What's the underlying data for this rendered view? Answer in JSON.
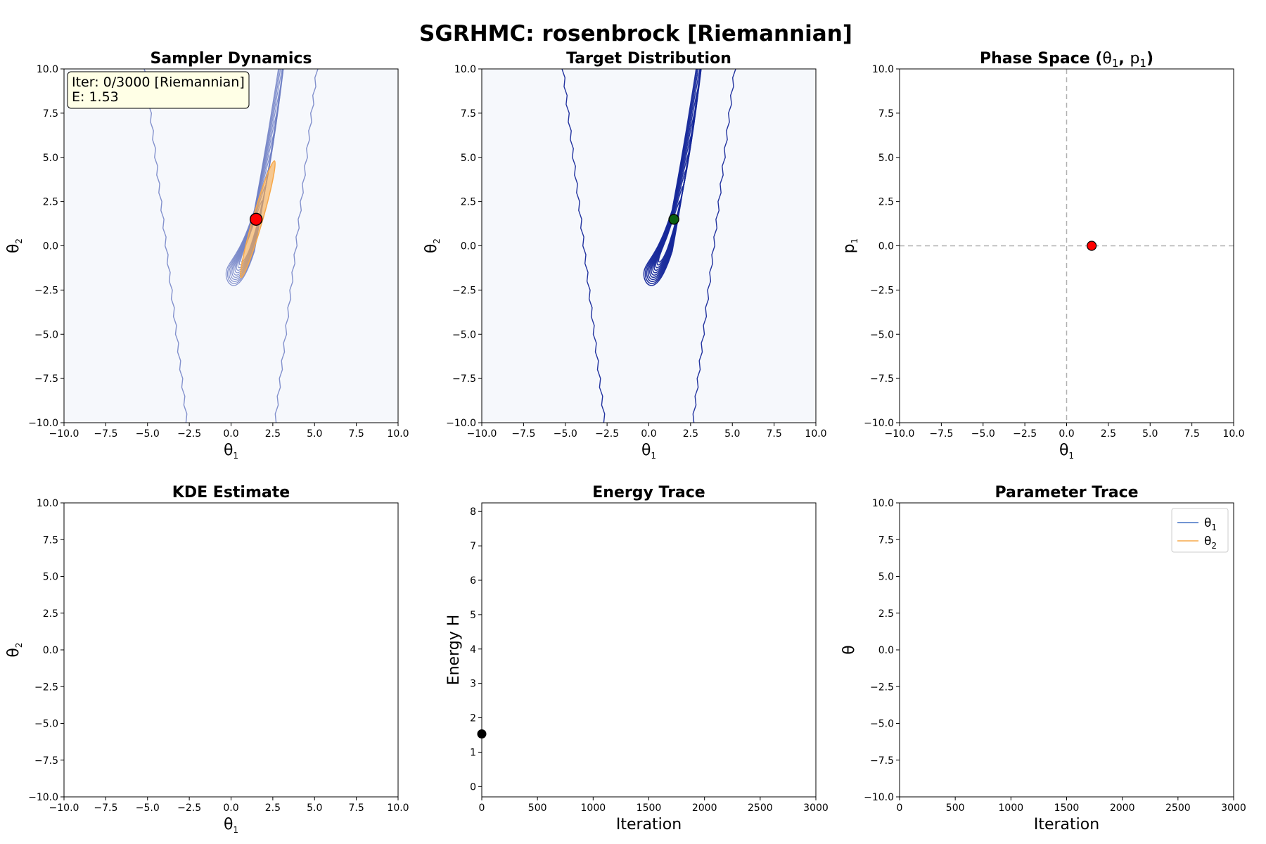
{
  "figure": {
    "title": "SGRHMC: rosenbrock [Riemannian]"
  },
  "colors": {
    "background_field": "#f6f8fc",
    "contour_light": "#6f7fc4",
    "contour_dark": "#16289a",
    "metric_ellipse": "#f7a84a",
    "sample_red": "#ff0000",
    "sample_green": "#0b5f12",
    "theta1_line": "#4472c4",
    "theta2_line": "#f7a84a",
    "guide_dash": "#b0b0b0"
  },
  "chart_data": [
    {
      "id": "sampler",
      "type": "contour",
      "title": "Sampler Dynamics",
      "xlabel": "θ1",
      "ylabel": "θ2",
      "xlim": [
        -10,
        10
      ],
      "ylim": [
        -10,
        10
      ],
      "xticks": [
        "−10.0",
        "−7.5",
        "−5.0",
        "−2.5",
        "0.0",
        "2.5",
        "5.0",
        "7.5",
        "10.0"
      ],
      "yticks": [
        "−10.0",
        "−7.5",
        "−5.0",
        "−2.5",
        "0.0",
        "2.5",
        "5.0",
        "7.5",
        "10.0"
      ],
      "annotation": [
        "Iter: 0/3000 [Riemannian]",
        "E: 1.53"
      ],
      "current_point": {
        "x": 1.5,
        "y": 1.5
      },
      "metric_ellipse": {
        "x1": 0.6,
        "y1": -1.8,
        "x2": 2.6,
        "y2": 4.8
      },
      "contour_style": "light"
    },
    {
      "id": "target",
      "type": "contour",
      "title": "Target Distribution",
      "xlabel": "θ1",
      "ylabel": "θ2",
      "xlim": [
        -10,
        10
      ],
      "ylim": [
        -10,
        10
      ],
      "xticks": [
        "−10.0",
        "−7.5",
        "−5.0",
        "−2.5",
        "0.0",
        "2.5",
        "5.0",
        "7.5",
        "10.0"
      ],
      "yticks": [
        "−10.0",
        "−7.5",
        "−5.0",
        "−2.5",
        "0.0",
        "2.5",
        "5.0",
        "7.5",
        "10.0"
      ],
      "current_point": {
        "x": 1.5,
        "y": 1.5
      },
      "contour_style": "dark"
    },
    {
      "id": "phase",
      "type": "scatter",
      "title": "Phase Space (θ1, p1)",
      "xlabel": "θ1",
      "ylabel": "p1",
      "xlim": [
        -10,
        10
      ],
      "ylim": [
        -10,
        10
      ],
      "xticks": [
        "−10.0",
        "−7.5",
        "−5.0",
        "−2.5",
        "0.0",
        "2.5",
        "5.0",
        "7.5",
        "10.0"
      ],
      "yticks": [
        "−10.0",
        "−7.5",
        "−5.0",
        "−2.5",
        "0.0",
        "2.5",
        "5.0",
        "7.5",
        "10.0"
      ],
      "points": [
        {
          "x": 1.5,
          "y": 0.0
        }
      ],
      "guides": {
        "x": 0,
        "y": 0
      }
    },
    {
      "id": "kde",
      "type": "heatmap",
      "title": "KDE Estimate",
      "xlabel": "θ1",
      "ylabel": "θ2",
      "xlim": [
        -10,
        10
      ],
      "ylim": [
        -10,
        10
      ],
      "xticks": [
        "−10.0",
        "−7.5",
        "−5.0",
        "−2.5",
        "0.0",
        "2.5",
        "5.0",
        "7.5",
        "10.0"
      ],
      "yticks": [
        "−10.0",
        "−7.5",
        "−5.0",
        "−2.5",
        "0.0",
        "2.5",
        "5.0",
        "7.5",
        "10.0"
      ]
    },
    {
      "id": "energy",
      "type": "line",
      "title": "Energy Trace",
      "xlabel": "Iteration",
      "ylabel": "Energy H",
      "xlim": [
        0,
        3000
      ],
      "ylim": [
        -0.3,
        8.25
      ],
      "xticks": [
        "0",
        "500",
        "1000",
        "1500",
        "2000",
        "2500",
        "3000"
      ],
      "yticks": [
        "0",
        "1",
        "2",
        "3",
        "4",
        "5",
        "6",
        "7",
        "8"
      ],
      "points": [
        {
          "x": 0,
          "y": 1.53
        }
      ]
    },
    {
      "id": "params",
      "type": "line",
      "title": "Parameter Trace",
      "xlabel": "Iteration",
      "ylabel": "θ",
      "xlim": [
        0,
        3000
      ],
      "ylim": [
        -10,
        10
      ],
      "xticks": [
        "0",
        "500",
        "1000",
        "1500",
        "2000",
        "2500",
        "3000"
      ],
      "yticks": [
        "−10.0",
        "−7.5",
        "−5.0",
        "−2.5",
        "0.0",
        "2.5",
        "5.0",
        "7.5",
        "10.0"
      ],
      "legend": {
        "placement": "top-right",
        "entries": [
          "θ1",
          "θ2"
        ]
      },
      "series": [
        {
          "name": "θ1",
          "values": []
        },
        {
          "name": "θ2",
          "values": []
        }
      ]
    }
  ]
}
